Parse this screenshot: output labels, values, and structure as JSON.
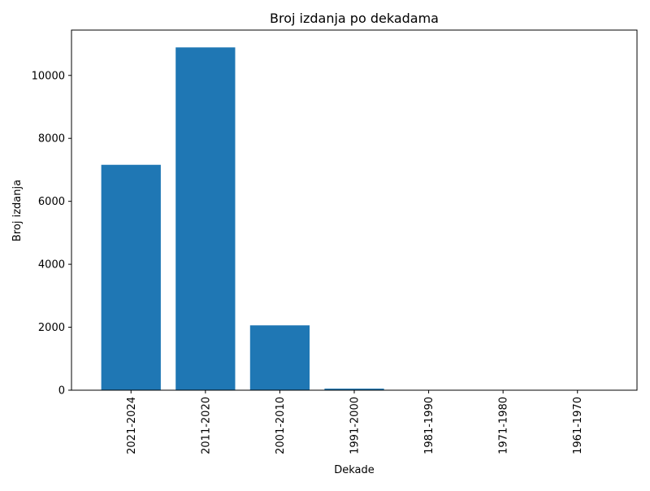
{
  "chart_data": {
    "type": "bar",
    "title": "Broj izdanja po dekadama",
    "xlabel": "Dekade",
    "ylabel": "Broj izdanja",
    "categories": [
      "2021-2024",
      "2011-2020",
      "2001-2010",
      "1991-2000",
      "1981-1990",
      "1971-1980",
      "1961-1970"
    ],
    "values": [
      7160,
      10890,
      2060,
      50,
      5,
      2,
      1
    ],
    "ylim": [
      0,
      11440
    ],
    "yticks": [
      0,
      2000,
      4000,
      6000,
      8000,
      10000
    ],
    "bar_color": "#1f77b4",
    "grid": false,
    "legend": "none"
  }
}
